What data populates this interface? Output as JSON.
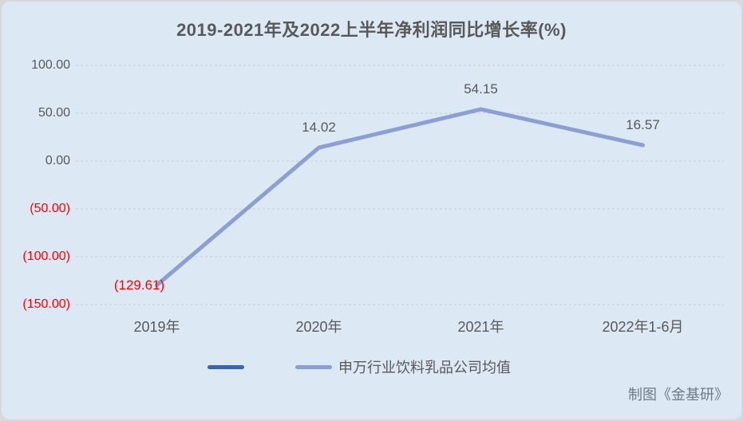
{
  "window": {
    "outer_background": "#d8d8da",
    "card_background": "#dce8f4",
    "gridline_color": "#c9ced3",
    "negative_color": "#ff0000",
    "text_color": "#595959"
  },
  "chart": {
    "title": "2019-2021年及2022上半年净利润同比增长率(%)",
    "legend": [
      {
        "label": "",
        "color": "#3a62ae"
      },
      {
        "label": "申万行业饮料乳品公司均值",
        "color": "#8d9ed2"
      }
    ]
  },
  "footer": {
    "credit": "制图《金基研》"
  },
  "chart_data": {
    "type": "line",
    "title": "2019-2021年及2022上半年净利润同比增长率(%)",
    "categories": [
      "2019年",
      "2020年",
      "2021年",
      "2022年1-6月"
    ],
    "series": [
      {
        "name": "",
        "color": "#3a62ae",
        "values": []
      },
      {
        "name": "申万行业饮料乳品公司均值",
        "color": "#8d9ed2",
        "values": [
          -129.61,
          14.02,
          54.15,
          16.57
        ]
      }
    ],
    "data_labels": [
      "(129.61)",
      "14.02",
      "54.15",
      "16.57"
    ],
    "data_label_positions": [
      "left",
      "above",
      "above",
      "above"
    ],
    "data_label_colors": [
      "#ff0000",
      "#595959",
      "#595959",
      "#595959"
    ],
    "y_axis": {
      "range": [
        -150,
        100
      ],
      "ticks": [
        100,
        50,
        0,
        -50,
        -100,
        -150
      ],
      "tick_labels": [
        "100.00",
        "50.00",
        "0.00",
        "(50.00)",
        "(100.00)",
        "(150.00)"
      ],
      "tick_label_colors": [
        "#595959",
        "#595959",
        "#595959",
        "#ff0000",
        "#ff0000",
        "#ff0000"
      ]
    },
    "xlabel": "",
    "ylabel": "",
    "grid": "horizontal-dashed",
    "legend_position": "bottom"
  }
}
